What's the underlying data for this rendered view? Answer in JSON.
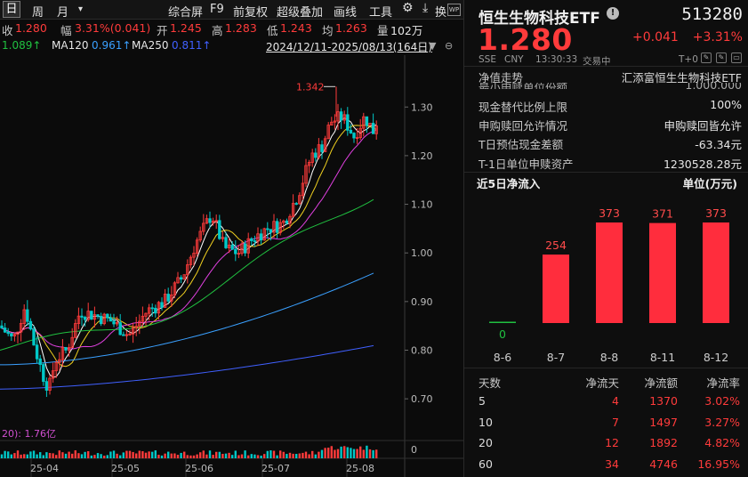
{
  "toolbar": {
    "period_tabs": [
      "日",
      "周",
      "月"
    ],
    "menu": [
      "综合屏",
      "F9",
      "前复权",
      "超级叠加",
      "画线",
      "工具"
    ],
    "more_label": "换"
  },
  "quote": {
    "close_label": "收",
    "close": "1.280",
    "change_label": "幅",
    "change": "3.31%(0.041)",
    "open_label": "开",
    "open": "1.245",
    "high_label": "高",
    "high": "1.283",
    "low_label": "低",
    "low": "1.243",
    "avg_label": "均",
    "avg": "1.263",
    "vol_label": "量",
    "vol": "102万"
  },
  "ma_row": {
    "ma_prev_value": "1.089",
    "ma120_label": "MA120",
    "ma120_value": "0.961",
    "ma250_label": "MA250",
    "ma250_value": "0.811",
    "date_range": "2024/12/11-2025/08/13(164日)"
  },
  "chart_data": {
    "type": "candlestick",
    "price_axis": [
      "1.30",
      "1.20",
      "1.10",
      "1.00",
      "0.90",
      "0.80",
      "0.70"
    ],
    "price_axis_values": [
      1.3,
      1.2,
      1.1,
      1.0,
      0.9,
      0.8,
      0.7
    ],
    "ylim": [
      0.66,
      1.37
    ],
    "max_label": "1.342",
    "volume_label": "20): 1.76亿",
    "volume_axis_label": "0",
    "x_labels": [
      "25-04",
      "25-05",
      "25-06",
      "25-07",
      "25-08"
    ],
    "colors": {
      "up": "#ff3b3b",
      "down": "#00c8c8",
      "ma5": "#ffffff",
      "ma10": "#f0d020",
      "ma20": "#e040e0",
      "ma60": "#20c040",
      "ma120": "#3aa0ff",
      "ma250": "#4060ff"
    }
  },
  "header": {
    "name": "恒生生物科技ETF",
    "code": "513280",
    "price": "1.280",
    "change": "+0.041",
    "change_pct": "+3.31%",
    "market": "SSE",
    "currency": "CNY",
    "time": "13:30:33",
    "status": "交易中",
    "t0": "T+0"
  },
  "nav": {
    "label": "净值走势",
    "manager": "汇添富恒生生物科技ETF"
  },
  "info_rows": [
    {
      "label": "最小申赎单位份额",
      "value": "1,000,000"
    },
    {
      "label": "现金替代比例上限",
      "value": "100%"
    },
    {
      "label": "申购赎回允许情况",
      "value": "申购赎回皆允许"
    },
    {
      "label": "T日预估现金差额",
      "value": "-63.34元"
    },
    {
      "label": "T-1日单位申赎资产",
      "value": "1230528.28元"
    }
  ],
  "inflow": {
    "title": "近5日净流入",
    "unit": "单位(万元)",
    "chart_data": {
      "type": "bar",
      "categories": [
        "8-6",
        "8-7",
        "8-8",
        "8-11",
        "8-12"
      ],
      "values": [
        0,
        254,
        373,
        371,
        373
      ],
      "ylim": [
        0,
        373
      ],
      "bar_color": "#ff2d3d",
      "zero_color": "#20c040"
    }
  },
  "flow_table": {
    "headers": [
      "天数",
      "净流天",
      "净流额",
      "净流率"
    ],
    "rows": [
      [
        "5",
        "4",
        "1370",
        "3.02%"
      ],
      [
        "10",
        "7",
        "1497",
        "3.27%"
      ],
      [
        "20",
        "12",
        "1892",
        "4.82%"
      ],
      [
        "60",
        "34",
        "4746",
        "16.95%"
      ]
    ]
  }
}
